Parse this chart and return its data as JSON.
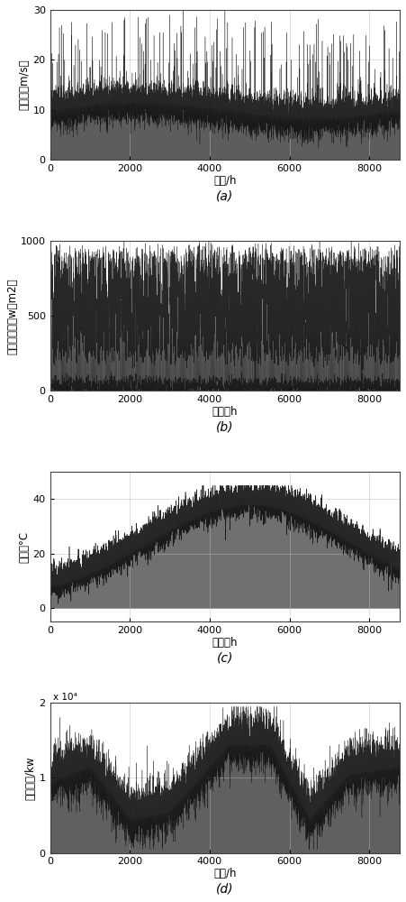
{
  "fig_width": 4.51,
  "fig_height": 10.0,
  "dpi": 100,
  "x_max": 8760,
  "x_ticks": [
    0,
    2000,
    4000,
    6000,
    8000
  ],
  "subplot_a": {
    "ylabel": "风速／（m/s）",
    "xlabel": "时间/h",
    "ylim": [
      0,
      30
    ],
    "yticks": [
      0,
      10,
      20,
      30
    ],
    "label": "(a)"
  },
  "subplot_b": {
    "ylabel": "光照强度／（w／m2）",
    "xlabel": "时间／h",
    "ylim": [
      0,
      1000
    ],
    "yticks": [
      0,
      500,
      1000
    ],
    "label": "(b)"
  },
  "subplot_c": {
    "ylabel": "温度／°C",
    "xlabel": "时间／h",
    "ylim": [
      -5,
      50
    ],
    "yticks": [
      0,
      20,
      40
    ],
    "label": "(c)"
  },
  "subplot_d": {
    "ylabel": "负荷功率/kw",
    "xlabel": "时间/h",
    "ylim": [
      0,
      20000
    ],
    "yticks": [
      0,
      10000,
      20000
    ],
    "yticklabels": [
      "0",
      "1",
      "2"
    ],
    "sci_label": "x 10⁴",
    "label": "(d)"
  },
  "line_color": "#111111",
  "fill_dark": "#333333",
  "fill_light": "#999999",
  "bg_color": "#ffffff",
  "grid_color": "#bbbbbb"
}
